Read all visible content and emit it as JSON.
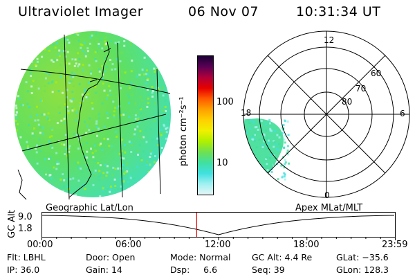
{
  "header": {
    "instrument": "Ultraviolet Imager",
    "date": "06 Nov 07",
    "time": "10:31:34 UT"
  },
  "colorbar": {
    "unit_label": "photon cm⁻²s⁻¹",
    "ticks": [
      "100",
      "10"
    ],
    "colors": [
      "#1a0033",
      "#5a0055",
      "#b0003a",
      "#e60000",
      "#ff5a00",
      "#ffa000",
      "#ffd000",
      "#f0f000",
      "#b0f000",
      "#70e050",
      "#40e0a0",
      "#40e0e0",
      "#a0f0f0",
      "#e6f6f6"
    ]
  },
  "geo_panel": {
    "label": "Geographic Lat/Lon",
    "fill_colors": [
      "#90e040",
      "#60e060",
      "#40e0c0"
    ]
  },
  "polar_panel": {
    "label": "Apex MLat/MLT",
    "mlt_labels": [
      "12",
      "18",
      "6",
      "0"
    ],
    "mlat_labels": [
      "60",
      "70",
      "80"
    ]
  },
  "timeline": {
    "ylabel": "GC Alt",
    "y_ticks": [
      "9.0",
      "1.8"
    ],
    "x_ticks": [
      "00:00",
      "06:00",
      "12:00",
      "18:00",
      "23:59"
    ],
    "current_time_fraction": 0.4382,
    "marker_color": "#e00000"
  },
  "footer": {
    "flt_label": "Flt:",
    "flt_value": "LBHL",
    "ip_label": "IP:",
    "ip_value": "36.0",
    "door_label": "Door:",
    "door_value": "Open",
    "gain_label": "Gain:",
    "gain_value": "14",
    "mode_label": "Mode:",
    "mode_value": "Normal",
    "dsp_label": "Dsp:",
    "dsp_value": "6.6",
    "gcalt_label": "GC Alt:",
    "gcalt_value": "4.4 Re",
    "seq_label": "Seq:",
    "seq_value": "39",
    "glat_label": "GLat:",
    "glat_value": "−35.6",
    "glon_label": "GLon:",
    "glon_value": "128.3"
  }
}
